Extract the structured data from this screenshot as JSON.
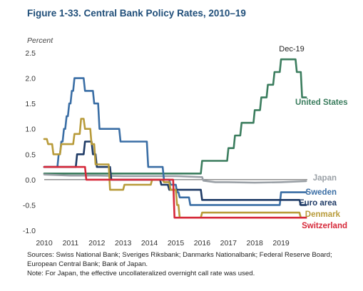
{
  "figure_title": "Figure 1-33. Central Bank Policy Rates, 2010–19",
  "notes": {
    "sources_line1": "Sources: Swiss National Bank; Sveriges Riksbank; Danmarks Nationalbank; Federal Reserve Board;",
    "sources_line2": "European Central Bank; Bank of Japan.",
    "note": "Note: For Japan, the effective uncollateralized overnight call rate was used."
  },
  "chart_data": {
    "type": "line",
    "title": "Figure 1-33. Central Bank Policy Rates, 2010–19",
    "ylabel": "Percent",
    "xlabel": "",
    "xlim": [
      2010,
      2020
    ],
    "ylim": [
      -1.0,
      2.5
    ],
    "x_ticks": [
      2010,
      2011,
      2012,
      2013,
      2014,
      2015,
      2016,
      2017,
      2018,
      2019
    ],
    "y_ticks": [
      -1.0,
      -0.5,
      0.0,
      0.5,
      1.0,
      1.5,
      2.0,
      2.5
    ],
    "y_tick_labels": [
      "-1.0",
      "-0.5",
      "0.0",
      "0.5",
      "1.0",
      "1.5",
      "2.0",
      "2.5"
    ],
    "grid": false,
    "legend": "inline labels at right end of each series",
    "annotations": [
      {
        "text": "Dec-19",
        "x": 2019.25,
        "y": 2.6
      }
    ],
    "series": [
      {
        "name": "United States",
        "color": "#3b7d5e",
        "x": [
          2010,
          2015.95,
          2016.0,
          2016.95,
          2017.0,
          2017.2,
          2017.25,
          2017.45,
          2017.5,
          2017.95,
          2018.0,
          2018.2,
          2018.25,
          2018.45,
          2018.5,
          2018.7,
          2018.75,
          2018.95,
          2019.0,
          2019.55,
          2019.6,
          2019.75,
          2019.8,
          2019.95
        ],
        "y": [
          0.12,
          0.12,
          0.37,
          0.37,
          0.62,
          0.62,
          0.87,
          0.87,
          1.12,
          1.12,
          1.37,
          1.37,
          1.62,
          1.62,
          1.87,
          1.87,
          2.12,
          2.12,
          2.37,
          2.37,
          2.12,
          2.12,
          1.62,
          1.62
        ]
      },
      {
        "name": "Japan",
        "color": "#9aa0a6",
        "x": [
          2010,
          2011,
          2012,
          2013,
          2014,
          2015,
          2016.0,
          2016.05,
          2016.5,
          2017,
          2018,
          2019,
          2019.95
        ],
        "y": [
          0.1,
          0.08,
          0.08,
          0.07,
          0.07,
          0.07,
          0.05,
          -0.02,
          -0.05,
          -0.05,
          -0.06,
          -0.05,
          -0.03
        ]
      },
      {
        "name": "Sweden",
        "color": "#3a6ea5",
        "x": [
          2010,
          2010.5,
          2010.55,
          2010.6,
          2010.65,
          2010.7,
          2010.75,
          2010.8,
          2010.85,
          2010.9,
          2010.95,
          2011.0,
          2011.05,
          2011.1,
          2011.15,
          2011.5,
          2011.55,
          2011.85,
          2011.9,
          2012.05,
          2012.1,
          2012.85,
          2012.9,
          2013.9,
          2013.95,
          2014.5,
          2014.55,
          2014.75,
          2014.8,
          2015.0,
          2015.05,
          2015.1,
          2015.15,
          2015.5,
          2015.55,
          2018.95,
          2019.0,
          2019.95
        ],
        "y": [
          0.25,
          0.25,
          0.5,
          0.5,
          0.75,
          0.75,
          1.0,
          1.0,
          1.25,
          1.25,
          1.5,
          1.5,
          1.75,
          1.75,
          2.0,
          2.0,
          1.75,
          1.75,
          1.5,
          1.5,
          1.0,
          1.0,
          0.75,
          0.75,
          0.25,
          0.25,
          0.0,
          0.0,
          -0.1,
          -0.1,
          -0.25,
          -0.25,
          -0.35,
          -0.35,
          -0.5,
          -0.5,
          -0.25,
          -0.25
        ]
      },
      {
        "name": "Euro area",
        "color": "#1f3b66",
        "x": [
          2010,
          2011.2,
          2011.25,
          2011.5,
          2011.55,
          2011.8,
          2011.85,
          2011.95,
          2012.0,
          2012.5,
          2012.55,
          2013.35,
          2013.4,
          2013.85,
          2013.9,
          2014.4,
          2014.45,
          2014.7,
          2014.75,
          2015.95,
          2016.0,
          2019.7,
          2019.75,
          2019.95
        ],
        "y": [
          0.25,
          0.25,
          0.5,
          0.5,
          0.75,
          0.75,
          0.5,
          0.5,
          0.25,
          0.25,
          0.0,
          0.0,
          0.0,
          0.0,
          0.0,
          0.0,
          -0.1,
          -0.1,
          -0.2,
          -0.2,
          -0.4,
          -0.4,
          -0.5,
          -0.5
        ]
      },
      {
        "name": "Denmark",
        "color": "#b89b3a",
        "x": [
          2010,
          2010.1,
          2010.15,
          2010.3,
          2010.35,
          2010.6,
          2010.65,
          2011.1,
          2011.15,
          2011.35,
          2011.4,
          2011.5,
          2011.55,
          2011.75,
          2011.8,
          2011.9,
          2011.95,
          2012.45,
          2012.5,
          2013.0,
          2013.05,
          2014.05,
          2014.1,
          2014.5,
          2014.55,
          2014.75,
          2014.8,
          2015.0,
          2015.05,
          2015.1,
          2015.15,
          2015.95,
          2016.0,
          2019.7,
          2019.75,
          2019.95
        ],
        "y": [
          0.8,
          0.8,
          0.7,
          0.7,
          0.5,
          0.5,
          0.7,
          0.7,
          0.9,
          0.9,
          1.2,
          1.2,
          1.0,
          1.0,
          0.7,
          0.7,
          0.3,
          0.3,
          -0.2,
          -0.2,
          -0.1,
          -0.1,
          0.0,
          0.0,
          -0.05,
          -0.05,
          -0.2,
          -0.2,
          -0.5,
          -0.5,
          -0.75,
          -0.75,
          -0.65,
          -0.65,
          -0.75,
          -0.75
        ]
      },
      {
        "name": "Switzerland",
        "color": "#d62839",
        "x": [
          2010,
          2011.55,
          2011.6,
          2014.9,
          2014.95,
          2019.95
        ],
        "y": [
          0.25,
          0.25,
          0.0,
          0.0,
          -0.75,
          -0.75
        ]
      }
    ]
  }
}
